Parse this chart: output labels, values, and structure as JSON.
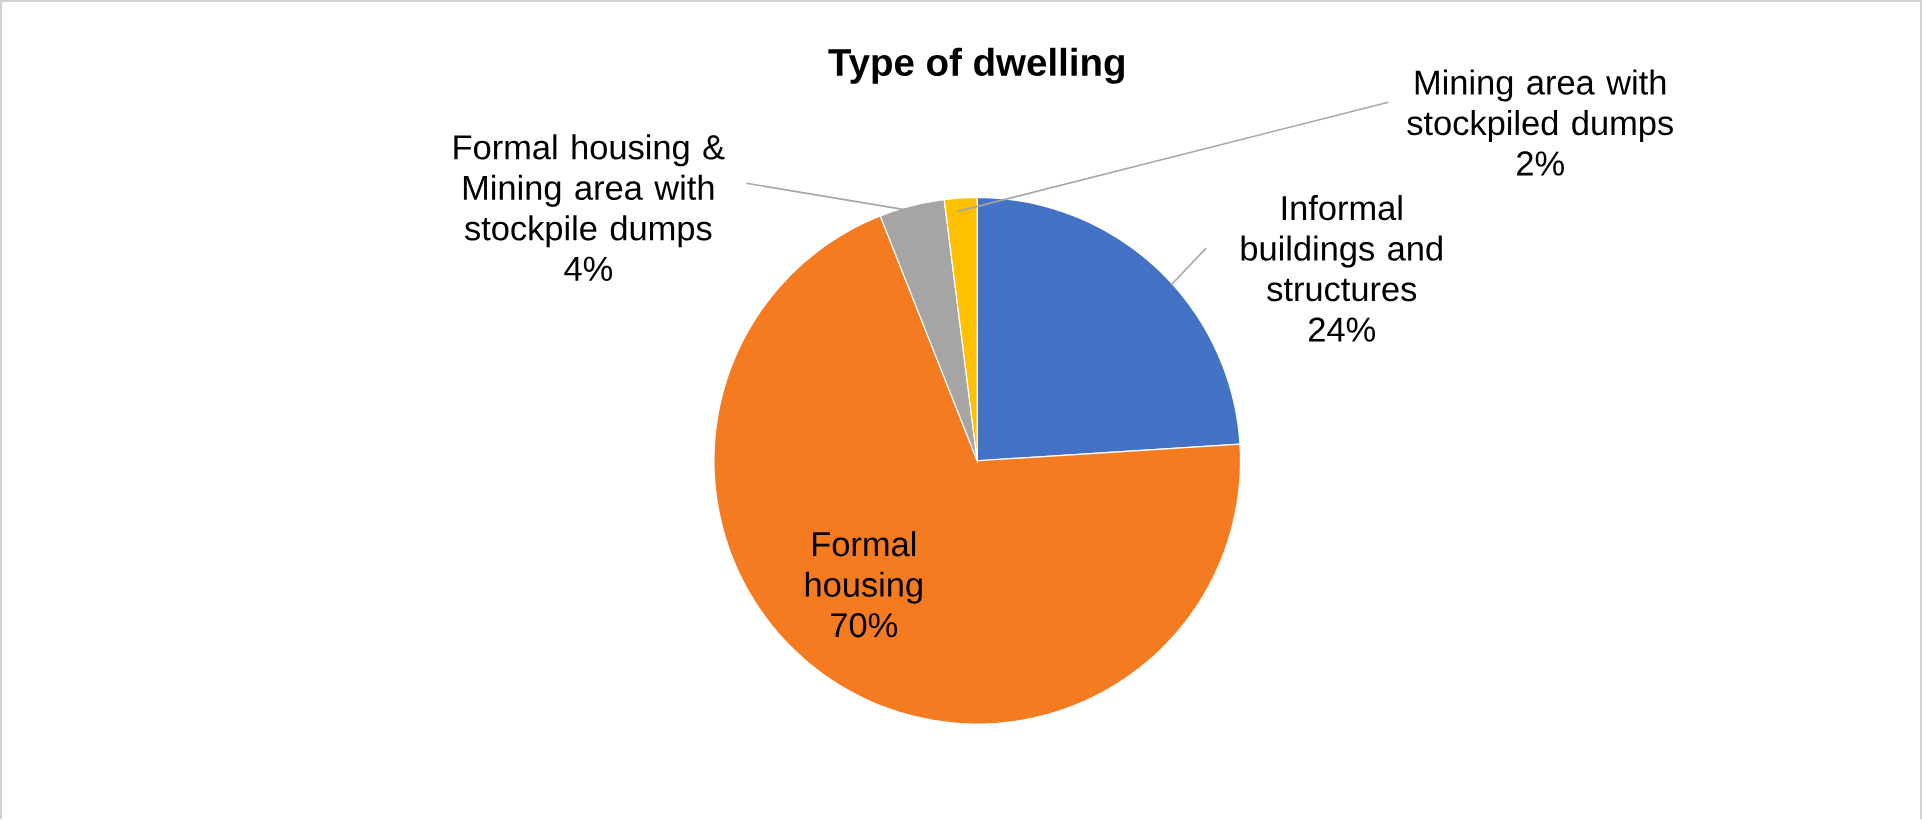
{
  "chart_data": {
    "type": "pie",
    "title": "Type of dwelling",
    "categories": [
      "Informal buildings and structures",
      "Formal housing",
      "Formal housing & Mining area with stockpile dumps",
      "Mining area with stockpiled dumps"
    ],
    "values": [
      24,
      70,
      4,
      2
    ],
    "value_labels": [
      "24%",
      "70%",
      "4%",
      "2%"
    ],
    "colors": [
      "#4472c4",
      "#f47b20",
      "#a5a5a5",
      "#ffc000"
    ]
  }
}
